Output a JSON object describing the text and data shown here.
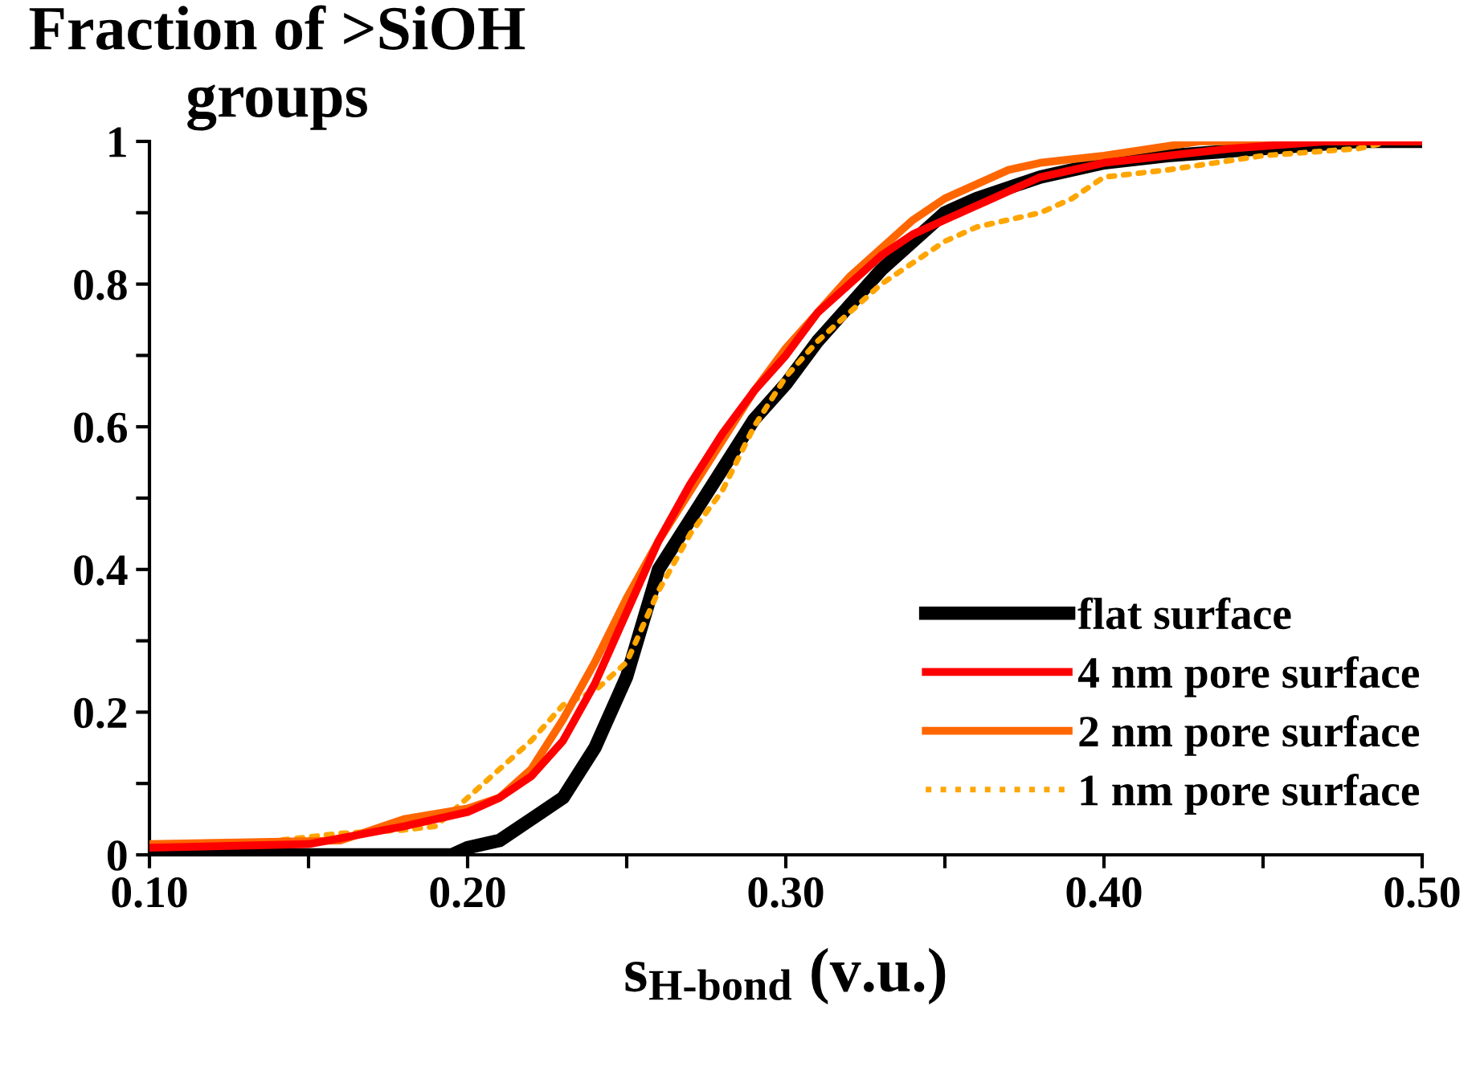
{
  "chart_data": {
    "type": "line",
    "ylabel": "Fraction of >SiOH groups",
    "xlabel": "s$_{H-bond}$ (v.u.)",
    "xlim": [
      0.1,
      0.5
    ],
    "xticks": [
      {
        "value": 0.1,
        "label": "0.10"
      },
      {
        "value": 0.15,
        "label": null
      },
      {
        "value": 0.2,
        "label": "0.20"
      },
      {
        "value": 0.25,
        "label": null
      },
      {
        "value": 0.3,
        "label": "0.30"
      },
      {
        "value": 0.35,
        "label": null
      },
      {
        "value": 0.4,
        "label": "0.40"
      },
      {
        "value": 0.45,
        "label": null
      },
      {
        "value": 0.5,
        "label": "0.50"
      }
    ],
    "ylim": [
      0,
      1
    ],
    "yticks": [
      0,
      {
        "value": 0.1,
        "label": null
      },
      0.2,
      {
        "value": 0.3,
        "label": null
      },
      0.4,
      {
        "value": 0.5,
        "label": null
      },
      0.6,
      {
        "value": 0.7,
        "label": null
      },
      0.8,
      {
        "value": 0.9,
        "label": null
      },
      1
    ],
    "legend": "bottom right",
    "grid": false,
    "marker": "none",
    "series": [
      {
        "name": "flat surface",
        "color": "#000000",
        "line_style": "solid",
        "x": [
          0.1,
          0.195,
          0.2,
          0.21,
          0.22,
          0.23,
          0.24,
          0.25,
          0.26,
          0.27,
          0.28,
          0.29,
          0.3,
          0.31,
          0.32,
          0.33,
          0.34,
          0.35,
          0.36,
          0.38,
          0.4,
          0.42,
          0.45,
          0.48,
          0.5
        ],
        "values": [
          0,
          0,
          0.01,
          0.02,
          0.05,
          0.08,
          0.15,
          0.25,
          0.4,
          0.47,
          0.54,
          0.61,
          0.66,
          0.72,
          0.77,
          0.82,
          0.86,
          0.9,
          0.92,
          0.95,
          0.97,
          0.98,
          0.99,
          1,
          1
        ]
      },
      {
        "name": "4 nm pore surface",
        "color": "#ff0000",
        "line_style": "solid",
        "x": [
          0.1,
          0.15,
          0.18,
          0.2,
          0.21,
          0.22,
          0.23,
          0.24,
          0.25,
          0.26,
          0.27,
          0.28,
          0.29,
          0.3,
          0.31,
          0.32,
          0.33,
          0.34,
          0.35,
          0.36,
          0.37,
          0.38,
          0.4,
          0.42,
          0.44,
          0.47,
          0.5
        ],
        "values": [
          0.01,
          0.015,
          0.04,
          0.06,
          0.08,
          0.11,
          0.16,
          0.24,
          0.34,
          0.44,
          0.52,
          0.59,
          0.65,
          0.7,
          0.76,
          0.8,
          0.84,
          0.87,
          0.89,
          0.91,
          0.93,
          0.95,
          0.97,
          0.98,
          0.99,
          1,
          1
        ]
      },
      {
        "name": "2 nm pore surface",
        "color": "#ff6600",
        "line_style": "solid",
        "x": [
          0.1,
          0.16,
          0.18,
          0.2,
          0.21,
          0.22,
          0.23,
          0.24,
          0.25,
          0.26,
          0.27,
          0.28,
          0.29,
          0.3,
          0.31,
          0.32,
          0.33,
          0.34,
          0.35,
          0.36,
          0.37,
          0.38,
          0.4,
          0.43,
          0.5
        ],
        "values": [
          0.015,
          0.02,
          0.05,
          0.065,
          0.08,
          0.12,
          0.19,
          0.27,
          0.36,
          0.44,
          0.51,
          0.58,
          0.65,
          0.71,
          0.76,
          0.81,
          0.85,
          0.89,
          0.92,
          0.94,
          0.96,
          0.97,
          0.98,
          1,
          1
        ]
      },
      {
        "name": "1 nm pore surface",
        "color": "#ffa500",
        "line_style": "dotted",
        "x": [
          0.1,
          0.14,
          0.16,
          0.18,
          0.19,
          0.2,
          0.21,
          0.22,
          0.23,
          0.24,
          0.25,
          0.26,
          0.27,
          0.28,
          0.29,
          0.3,
          0.31,
          0.32,
          0.33,
          0.34,
          0.35,
          0.36,
          0.38,
          0.39,
          0.4,
          0.42,
          0.45,
          0.48,
          0.49
        ],
        "values": [
          0.01,
          0.02,
          0.03,
          0.035,
          0.04,
          0.08,
          0.12,
          0.16,
          0.21,
          0.23,
          0.27,
          0.37,
          0.45,
          0.51,
          0.6,
          0.67,
          0.72,
          0.76,
          0.8,
          0.83,
          0.86,
          0.88,
          0.9,
          0.92,
          0.95,
          0.96,
          0.98,
          0.99,
          1
        ]
      }
    ]
  }
}
